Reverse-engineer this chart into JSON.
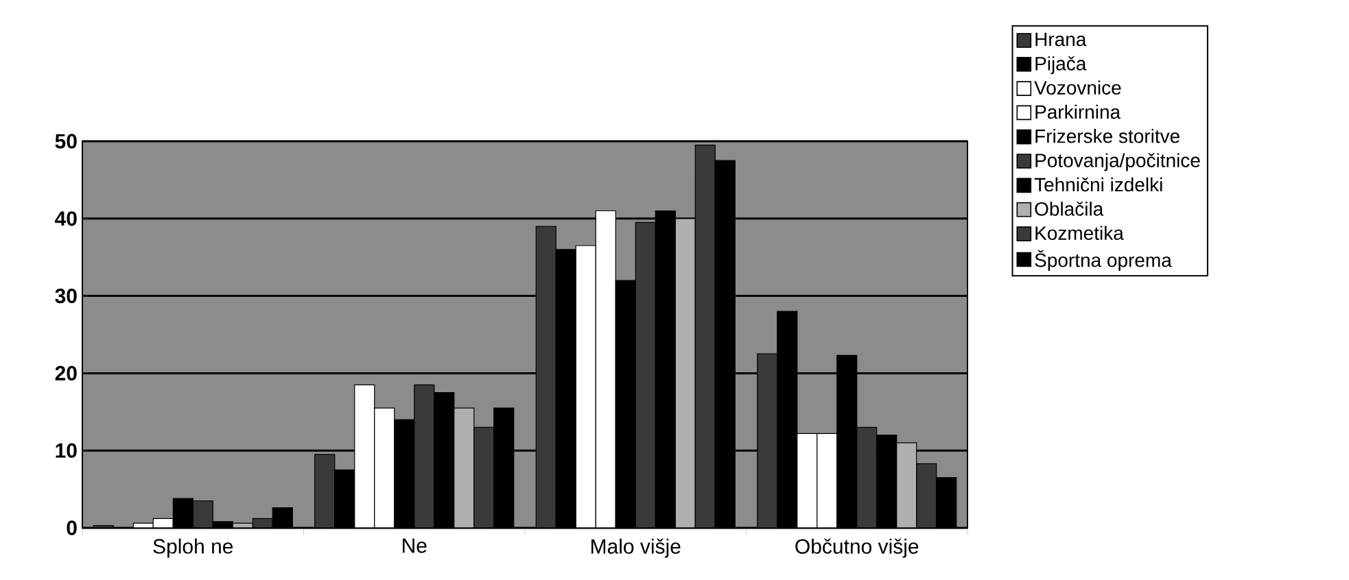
{
  "chart_data": {
    "type": "bar",
    "categories": [
      "Sploh ne",
      "Ne",
      "Malo višje",
      "Občutno višje"
    ],
    "series": [
      {
        "name": "Hrana",
        "color": "#3a3a3a",
        "values": [
          0.3,
          9.5,
          39,
          22.5
        ]
      },
      {
        "name": "Pijača",
        "color": "#000000",
        "values": [
          null,
          7.5,
          36,
          28
        ]
      },
      {
        "name": "Vozovnice",
        "color": "#ffffff",
        "values": [
          0.6,
          18.5,
          36.5,
          12.2
        ]
      },
      {
        "name": "Parkirnina",
        "color": "#ffffff",
        "values": [
          1.2,
          15.5,
          41,
          12.2
        ]
      },
      {
        "name": "Frizerske storitve",
        "color": "#000000",
        "values": [
          3.8,
          14,
          32,
          22.3
        ]
      },
      {
        "name": "Potovanja/počitnice",
        "color": "#3a3a3a",
        "values": [
          3.5,
          18.5,
          39.5,
          13
        ]
      },
      {
        "name": "Tehnični izdelki",
        "color": "#000000",
        "values": [
          0.8,
          17.5,
          41,
          12
        ]
      },
      {
        "name": "Oblačila",
        "color": "#b0b0b0",
        "values": [
          0.6,
          15.5,
          40,
          11
        ]
      },
      {
        "name": "Kozmetika",
        "color": "#3a3a3a",
        "values": [
          1.2,
          13,
          49.5,
          8.3
        ]
      },
      {
        "name": "Športna oprema",
        "color": "#000000",
        "values": [
          2.6,
          15.5,
          47.5,
          6.5
        ]
      }
    ],
    "ylim": [
      0,
      50
    ],
    "yticks": [
      0,
      10,
      20,
      30,
      40,
      50
    ],
    "grid": "y",
    "legend": "right"
  }
}
